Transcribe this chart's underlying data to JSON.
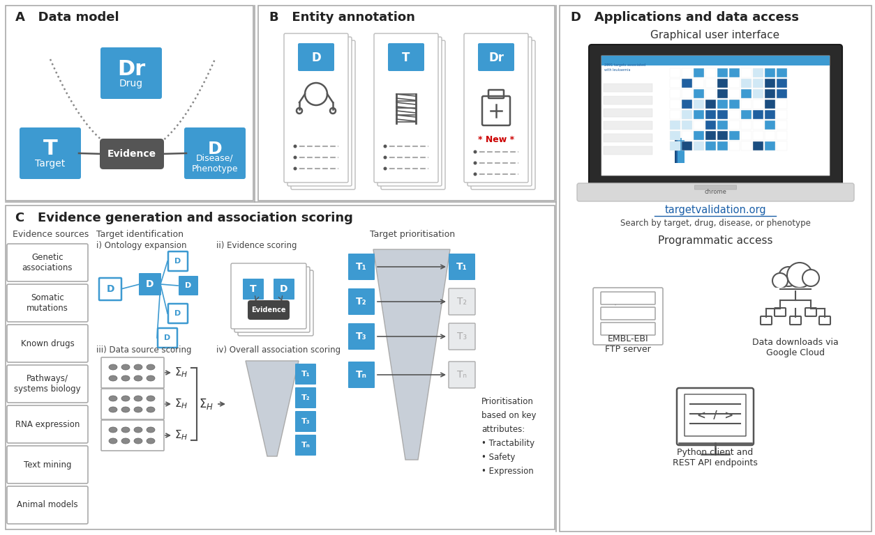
{
  "bg_color": "#ffffff",
  "blue": "#3d9ad1",
  "dark_gray": "#555555",
  "border_color": "#aaaaaa",
  "red": "#cc0000",
  "panel_A_title": "A   Data model",
  "panel_B_title": "B   Entity annotation",
  "panel_C_title": "C   Evidence generation and association scoring",
  "panel_D_title": "D   Applications and data access",
  "gui_title": "Graphical user interface",
  "url_text": "targetvalidation.org",
  "url_sub": "Search by target, drug, disease, or phenotype",
  "prog_title": "Programmatic access",
  "embl_label": "EMBL-EBI\nFTP server",
  "cloud_label": "Data downloads via\nGoogle Cloud",
  "python_label": "Python client and\nREST API endpoints",
  "ev_sources": [
    "Genetic\nassociations",
    "Somatic\nmutations",
    "Known drugs",
    "Pathways/\nsystems biology",
    "RNA expression",
    "Text mining",
    "Animal models"
  ],
  "target_id_title": "Target identification",
  "onto_title": "i) Ontology expansion",
  "ev_scoring_title": "ii) Evidence scoring",
  "ds_scoring_title": "iii) Data source scoring",
  "oa_scoring_title": "iv) Overall association scoring",
  "tp_title": "Target prioritisation",
  "priority_text": "Prioritisation\nbased on key\nattributes:\n• Tractability\n• Safety\n• Expression",
  "t_labels": [
    "T₁",
    "T₂",
    "T₃",
    "Tₙ"
  ],
  "t_labels_small": [
    "T₁",
    "T₂",
    "T₃",
    "Tₙ"
  ]
}
